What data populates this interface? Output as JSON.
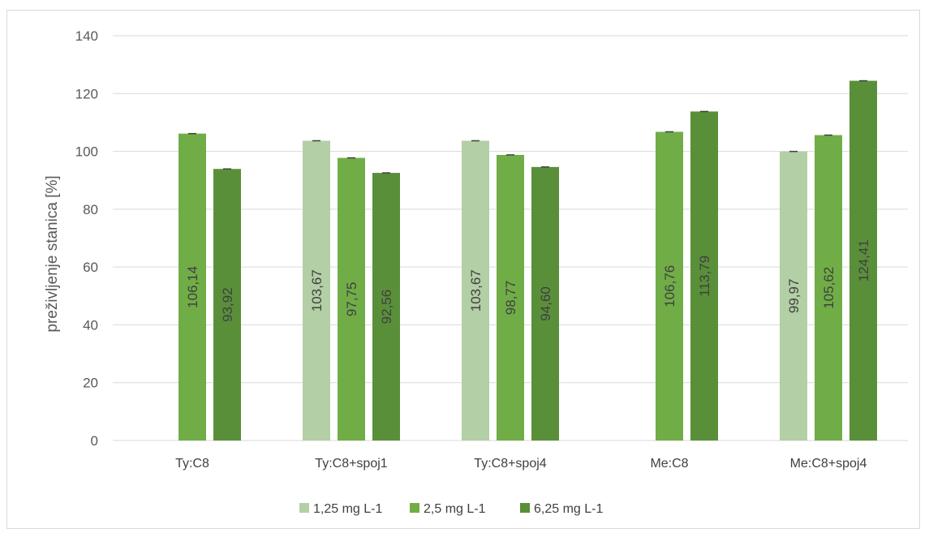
{
  "chart_data": {
    "type": "bar",
    "title": "",
    "xlabel": "",
    "ylabel": "preživljenje stanica [%]",
    "ylim": [
      0,
      140
    ],
    "yticks": [
      0,
      20,
      40,
      60,
      80,
      100,
      120,
      140
    ],
    "grid": true,
    "legend_position": "bottom",
    "categories": [
      "Ty:C8",
      "Ty:C8+spoj1",
      "Ty:C8+spoj4",
      "Me:C8",
      "Me:C8+spoj4"
    ],
    "series": [
      {
        "name": "1,25 mg L-1",
        "color": "#b3cfa5",
        "values": [
          null,
          103.67,
          103.67,
          null,
          99.97
        ],
        "labels": [
          null,
          "103,67",
          "103,67",
          null,
          "99,97"
        ]
      },
      {
        "name": "2,5 mg L-1",
        "color": "#70ad47",
        "values": [
          106.14,
          97.75,
          98.77,
          106.76,
          105.62
        ],
        "labels": [
          "106,14",
          "97,75",
          "98,77",
          "106,76",
          "105,62"
        ]
      },
      {
        "name": "6,25 mg L-1",
        "color": "#5a8f3a",
        "values": [
          93.92,
          92.56,
          94.6,
          113.79,
          124.41
        ],
        "labels": [
          "93,92",
          "92,56",
          "94,60",
          "113,79",
          "124,41"
        ]
      }
    ],
    "error_bar_color": "#404040"
  }
}
